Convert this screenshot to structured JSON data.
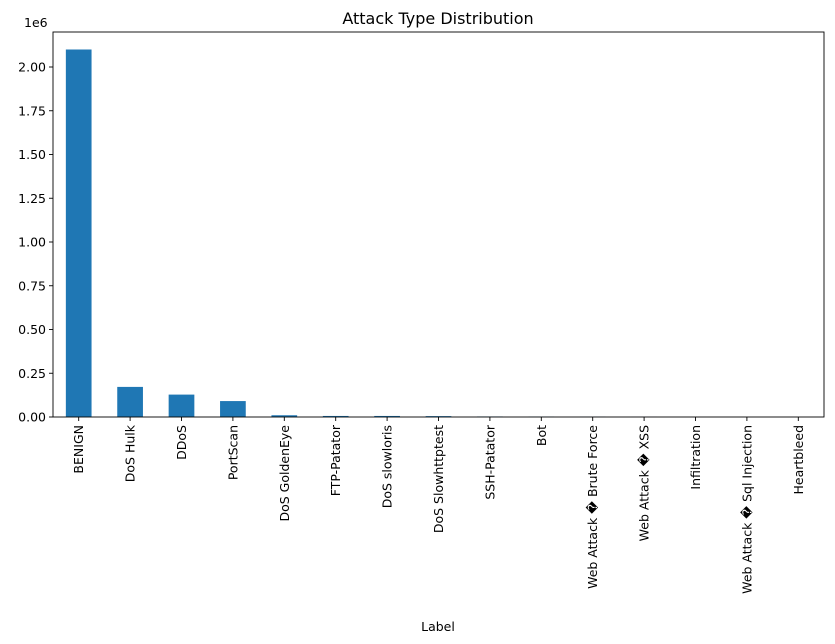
{
  "chart_data": {
    "type": "bar",
    "title": "Attack Type Distribution",
    "xlabel": "Label",
    "ylabel": "",
    "y_offset_label": "1e6",
    "ylim": [
      0,
      2.2
    ],
    "y_ticks": [
      0.0,
      0.25,
      0.5,
      0.75,
      1.0,
      1.25,
      1.5,
      1.75,
      2.0
    ],
    "y_tick_labels": [
      "0.00",
      "0.25",
      "0.50",
      "0.75",
      "1.00",
      "1.25",
      "1.50",
      "1.75",
      "2.00"
    ],
    "grid": false,
    "legend": "none",
    "bar_color": "#1f77b4",
    "categories": [
      "BENIGN",
      "DoS Hulk",
      "DDoS",
      "PortScan",
      "DoS GoldenEye",
      "FTP-Patator",
      "DoS slowloris",
      "DoS Slowhttptest",
      "SSH-Patator",
      "Bot",
      "Web Attack � Brute Force",
      "Web Attack � XSS",
      "Infiltration",
      "Web Attack � Sql Injection",
      "Heartbleed"
    ],
    "values": [
      2.1,
      0.172,
      0.128,
      0.091,
      0.01,
      0.006,
      0.006,
      0.005,
      0.003,
      0.002,
      0.0015,
      0.0007,
      4e-05,
      2e-05,
      1e-05
    ]
  }
}
